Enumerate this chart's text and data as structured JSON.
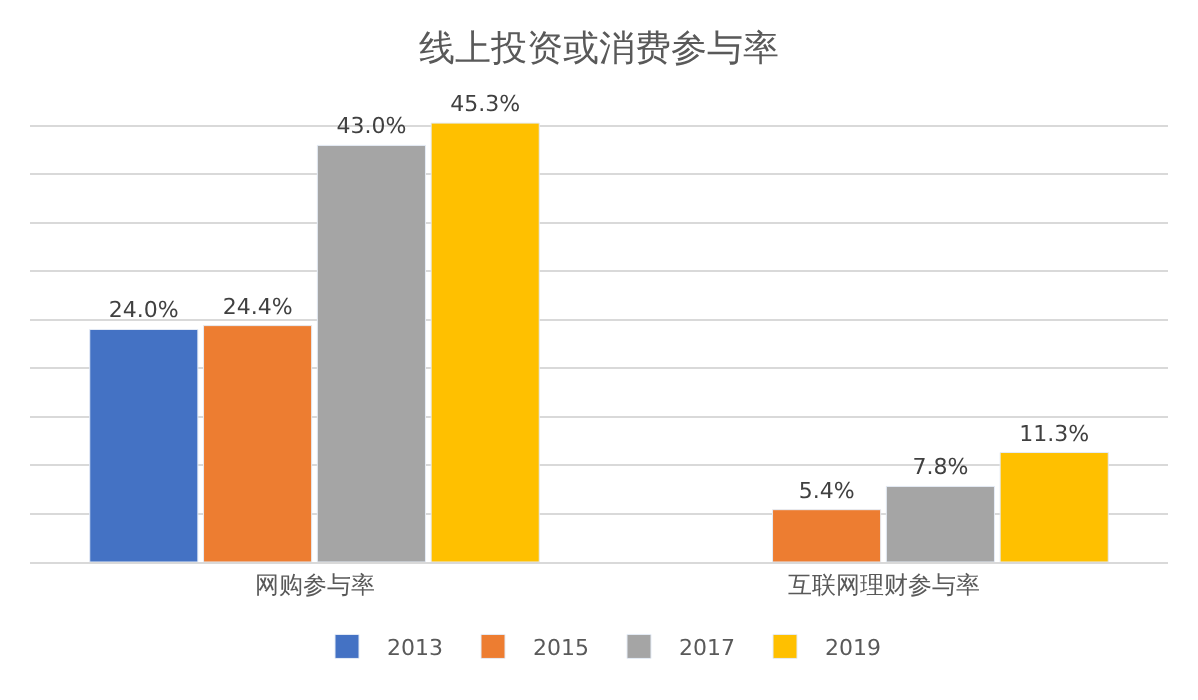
{
  "chart_data": {
    "type": "bar",
    "title": "线上投资或消费参与率",
    "categories": [
      "网购参与率",
      "互联网理财参与率"
    ],
    "series": [
      {
        "name": "2013",
        "color": "#4472c4",
        "values": [
          24.0,
          null
        ],
        "value_labels": [
          "24.0%",
          null
        ]
      },
      {
        "name": "2015",
        "color": "#ed7d31",
        "values": [
          24.4,
          5.4
        ],
        "value_labels": [
          "24.4%",
          "5.4%"
        ]
      },
      {
        "name": "2017",
        "color": "#a5a5a5",
        "values": [
          43.0,
          7.8
        ],
        "value_labels": [
          "43.0%",
          "7.8%"
        ]
      },
      {
        "name": "2019",
        "color": "#ffc000",
        "values": [
          45.3,
          11.3
        ],
        "value_labels": [
          "45.3%",
          "11.3%"
        ]
      }
    ],
    "grid": "y",
    "tick_labels": "x",
    "legend": "bottom"
  }
}
